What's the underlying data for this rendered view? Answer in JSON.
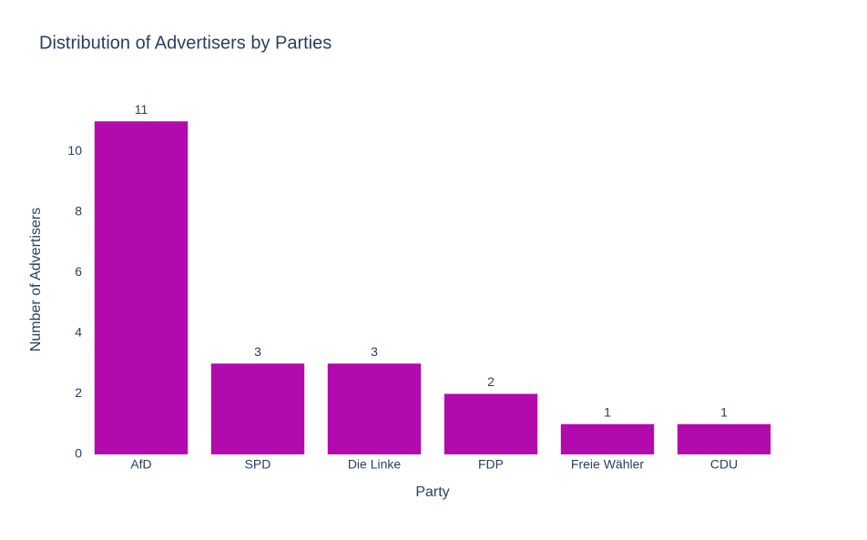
{
  "chart_data": {
    "type": "bar",
    "title": "Distribution of Advertisers by Parties",
    "x_label": "Party",
    "y_label": "Number of Advertisers",
    "categories": [
      "AfD",
      "SPD",
      "Die Linke",
      "FDP",
      "Freie Wähler",
      "CDU"
    ],
    "values": [
      11,
      3,
      3,
      2,
      1,
      1
    ],
    "color": "#b30aad",
    "ylim": [
      0,
      12
    ],
    "yticks": [
      0,
      2,
      4,
      6,
      8,
      10
    ],
    "grid": false
  }
}
